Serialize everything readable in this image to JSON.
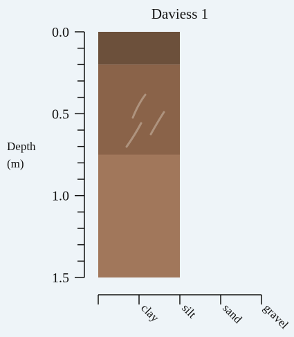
{
  "chart_data": {
    "type": "profile",
    "title": "Daviess 1",
    "ylabel": [
      "Depth",
      "(m)"
    ],
    "categories": [
      "clay",
      "silt",
      "sand",
      "gravel"
    ],
    "layers": [
      {
        "top": 0,
        "bottom": 0.2,
        "texture": "silt",
        "color": "#6c503b"
      },
      {
        "top": 0.2,
        "bottom": 0.75,
        "texture": "silt",
        "color": "#8a6349"
      },
      {
        "top": 0.75,
        "bottom": 1.5,
        "texture": "silt",
        "color": "#a1775b"
      }
    ],
    "ylim": [
      0,
      1.5
    ],
    "yticks": [
      {
        "value": 0,
        "label": "0.0"
      },
      {
        "value": 0.1,
        "label": null
      },
      {
        "value": 0.2,
        "label": null
      },
      {
        "value": 0.3,
        "label": null
      },
      {
        "value": 0.4,
        "label": null
      },
      {
        "value": 0.5,
        "label": "0.5"
      },
      {
        "value": 0.6,
        "label": null
      },
      {
        "value": 0.7,
        "label": null
      },
      {
        "value": 0.8,
        "label": null
      },
      {
        "value": 0.9,
        "label": null
      },
      {
        "value": 1,
        "label": "1.0"
      },
      {
        "value": 1.1,
        "label": null
      },
      {
        "value": 1.2,
        "label": null
      },
      {
        "value": 1.3,
        "label": null
      },
      {
        "value": 1.4,
        "label": null
      },
      {
        "value": 1.5,
        "label": "1.5"
      }
    ]
  }
}
